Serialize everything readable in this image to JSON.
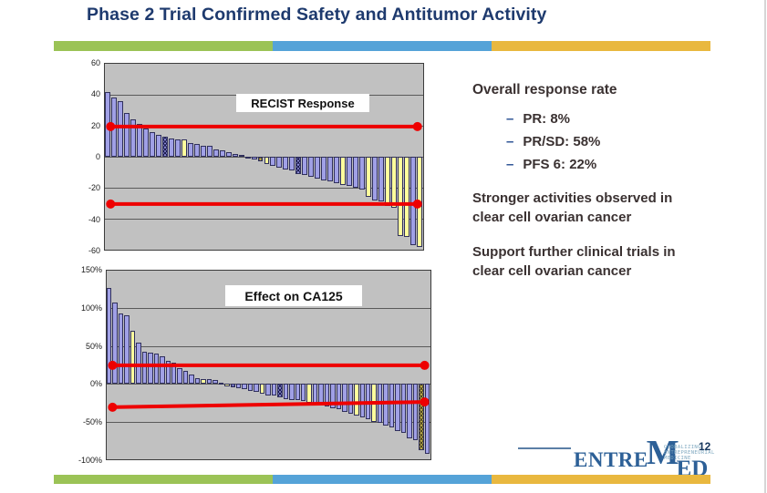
{
  "slide": {
    "title": "Phase 2 Trial Confirmed Safety and Antitumor Activity",
    "title_color": "#1e3a6e",
    "accent_bar_colors": [
      "#9bc356",
      "#55a3d8",
      "#e9b83f"
    ]
  },
  "right_panel": {
    "heading": "Overall response rate",
    "bullets": [
      {
        "dash": "–",
        "label": "PR: 8%"
      },
      {
        "dash": "–",
        "label": "PR/SD: 58%"
      },
      {
        "dash": "–",
        "label": "PFS 6: 22%"
      }
    ],
    "paragraph1": "Stronger activities observed in clear cell ovarian cancer",
    "paragraph2": "Support further clinical trials in clear cell ovarian cancer",
    "text_color": "#3a3131",
    "dash_color": "#2f5496"
  },
  "footer": {
    "logo_text_1": "ENTRE",
    "logo_text_2": "M",
    "logo_text_3": "ED",
    "logo_color": "#2d6097",
    "tagline_lines": [
      "GLOBALIZING",
      "ENTREPRENEURIAL",
      "MEDICINE"
    ],
    "tagline_color": "#7fa8c0",
    "page_number": "12",
    "page_number_color": "#17365d"
  },
  "chart_data": [
    {
      "type": "bar",
      "title": "RECIST Response",
      "xlabel": "",
      "ylabel": "",
      "ylim": [
        -60,
        60
      ],
      "grid": true,
      "plot_bg": "#c1c1c1",
      "yticks": [
        {
          "label": "60",
          "value": 60
        },
        {
          "label": "40",
          "value": 40
        },
        {
          "label": "20",
          "value": 20
        },
        {
          "label": "0",
          "value": 0
        },
        {
          "label": "-20",
          "value": -20
        },
        {
          "label": "-40",
          "value": -40
        },
        {
          "label": "-60",
          "value": -60
        }
      ],
      "bar_palette": {
        "b": "#a0a0e6",
        "y": "#ffff9c",
        "h": "navy-crosshatch",
        "o": "olive-crosshatch"
      },
      "reference_lines": [
        {
          "left_value": 19.5,
          "right_value": 19.5,
          "color": "#ee0000"
        },
        {
          "left_value": -30.5,
          "right_value": -30.5,
          "color": "#ee0000"
        }
      ],
      "values": [
        42,
        38,
        36,
        28,
        24,
        21,
        18,
        16,
        14,
        13,
        12,
        11,
        11,
        9,
        8,
        7,
        7,
        5,
        4,
        3,
        2,
        1,
        -1,
        -2,
        -3,
        -5,
        -6,
        -7,
        -8,
        -9,
        -11,
        -12,
        -13,
        -14,
        -15,
        -16,
        -17,
        -18,
        -19,
        -20,
        -21,
        -26,
        -28,
        -29,
        -32,
        -33,
        -51,
        -52,
        -57,
        -58
      ],
      "colors": [
        "b",
        "b",
        "b",
        "b",
        "b",
        "b",
        "b",
        "b",
        "b",
        "h",
        "b",
        "b",
        "y",
        "b",
        "b",
        "b",
        "b",
        "b",
        "b",
        "b",
        "b",
        "b",
        "b",
        "b",
        "o",
        "y",
        "b",
        "b",
        "b",
        "b",
        "h",
        "b",
        "b",
        "b",
        "b",
        "b",
        "b",
        "y",
        "b",
        "b",
        "b",
        "y",
        "b",
        "b",
        "y",
        "y",
        "y",
        "y",
        "b",
        "y"
      ]
    },
    {
      "type": "bar",
      "title": "Effect on CA125",
      "xlabel": "",
      "ylabel": "",
      "ylim": [
        -100,
        150
      ],
      "grid": true,
      "plot_bg": "#c1c1c1",
      "yticks": [
        {
          "label": "150%",
          "value": 150
        },
        {
          "label": "100%",
          "value": 100
        },
        {
          "label": "50%",
          "value": 50
        },
        {
          "label": "0%",
          "value": 0
        },
        {
          "label": "-50%",
          "value": -50
        },
        {
          "label": "-100%",
          "value": -100
        }
      ],
      "bar_palette": {
        "b": "#a0a0e6",
        "y": "#ffff9c",
        "h": "navy-crosshatch",
        "o": "olive-crosshatch"
      },
      "reference_lines": [
        {
          "left_value": 24.5,
          "right_value": 24.5,
          "color": "#ee0000"
        },
        {
          "left_value": -31,
          "right_value": -24,
          "color": "#ee0000"
        }
      ],
      "values": [
        127,
        108,
        93,
        91,
        70,
        55,
        42,
        41,
        40,
        36,
        30,
        28,
        21,
        17,
        12,
        8,
        6,
        6,
        5,
        2,
        -4,
        -5,
        -6,
        -7,
        -9,
        -11,
        -13,
        -15,
        -16,
        -18,
        -20,
        -21,
        -22,
        -23,
        -25,
        -27,
        -28,
        -30,
        -32,
        -34,
        -37,
        -40,
        -42,
        -45,
        -47,
        -50,
        -52,
        -55,
        -58,
        -62,
        -65,
        -72,
        -75,
        -88,
        -93
      ],
      "colors": [
        "b",
        "b",
        "b",
        "b",
        "y",
        "b",
        "b",
        "b",
        "b",
        "b",
        "b",
        "b",
        "b",
        "b",
        "b",
        "b",
        "y",
        "b",
        "b",
        "b",
        "y",
        "h",
        "b",
        "b",
        "b",
        "b",
        "y",
        "b",
        "b",
        "h",
        "b",
        "b",
        "b",
        "b",
        "y",
        "b",
        "b",
        "b",
        "b",
        "b",
        "b",
        "b",
        "y",
        "b",
        "b",
        "y",
        "b",
        "b",
        "b",
        "b",
        "b",
        "b",
        "b",
        "o",
        "b"
      ]
    }
  ]
}
